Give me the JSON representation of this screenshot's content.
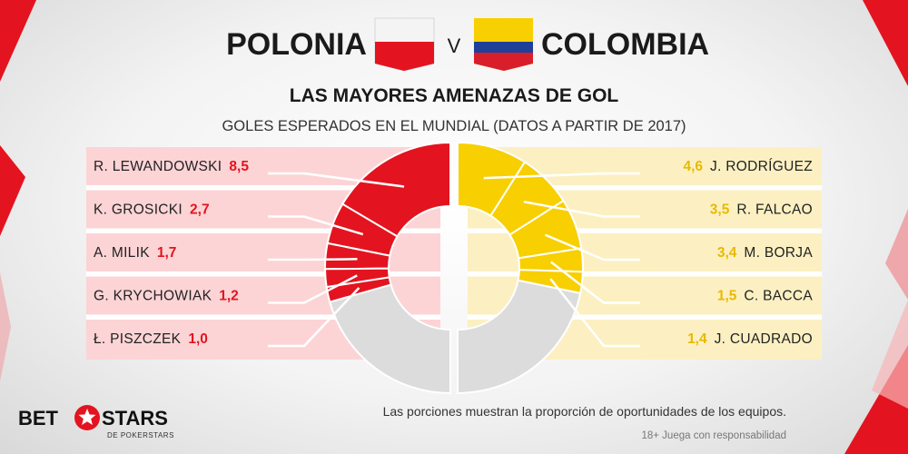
{
  "header": {
    "team_left": "POLONIA",
    "vs": "V",
    "team_right": "COLOMBIA",
    "title": "LAS MAYORES AMENAZAS DE GOL",
    "subtitle": "GOLES ESPERADOS EN EL MUNDIAL (DATOS A PARTIR DE 2017)"
  },
  "colors": {
    "poland": "#e3141f",
    "poland_panel": "#fcd4d6",
    "colombia": "#f8cf00",
    "colombia_panel": "#fcf0c2",
    "remainder": "#dcdcdc"
  },
  "chart_data": {
    "type": "pie",
    "style": "split donut",
    "series": [
      {
        "name": "POLONIA",
        "labels": [
          "R. LEWANDOWSKI",
          "K. GROSICKI",
          "A. MILIK",
          "G. KRYCHOWIAK",
          "Ł. PISZCZEK"
        ],
        "values": [
          "8,5",
          "2,7",
          "1,7",
          "1,2",
          "1,0"
        ],
        "share_of_half": [
          0.33,
          0.107,
          0.066,
          0.046,
          0.039
        ]
      },
      {
        "name": "COLOMBIA",
        "labels": [
          "J. RODRÍGUEZ",
          "R. FALCAO",
          "M. BORJA",
          "C. BACCA",
          "J. CUADRADO"
        ],
        "values": [
          "4,6",
          "3,5",
          "3,4",
          "1,5",
          "1,4"
        ],
        "share_of_half": [
          0.18,
          0.14,
          0.13,
          0.06,
          0.055
        ]
      }
    ]
  },
  "footer": {
    "note": "Las porciones muestran la proporción de oportunidades de los equipos.",
    "responsible": "18+ Juega con responsabilidad"
  },
  "logo": {
    "left": "BET",
    "right": "STARS",
    "sub": "DE POKERSTARS"
  }
}
